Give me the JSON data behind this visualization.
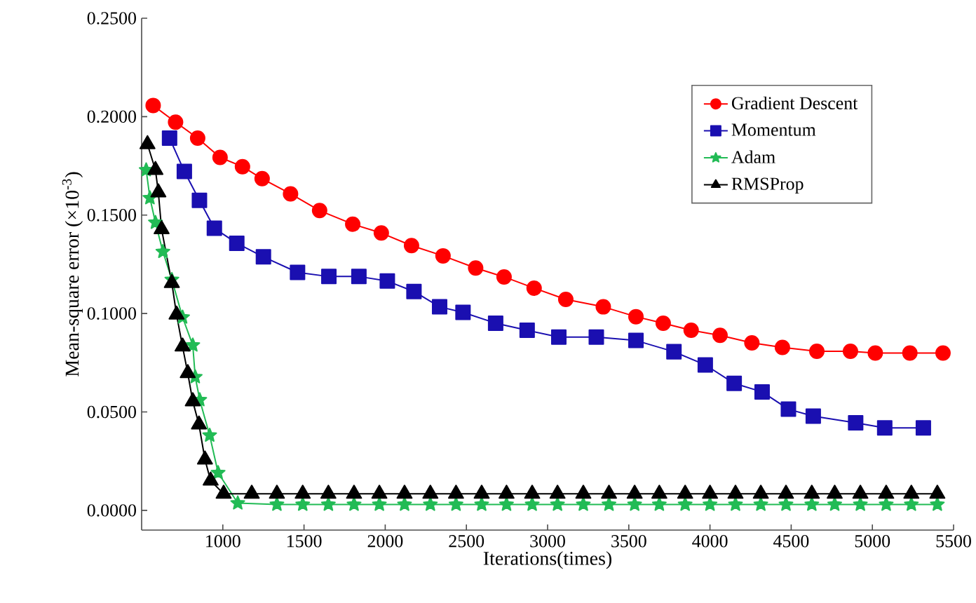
{
  "chart_data": {
    "type": "line",
    "xlabel": "Iterations(times)",
    "ylabel": "Mean-square error (×10$^{-3}$)",
    "xlim": [
      500,
      5500
    ],
    "ylim": [
      -0.01,
      0.25
    ],
    "xticks": [
      1000,
      1500,
      2000,
      2500,
      3000,
      3500,
      4000,
      4500,
      5000,
      5500
    ],
    "yticks": [
      {
        "value": 0,
        "label": "0.0000"
      },
      {
        "value": 0.05,
        "label": "0.0500"
      },
      {
        "value": 0.1,
        "label": "0.1000"
      },
      {
        "value": 0.15,
        "label": "0.1500"
      },
      {
        "value": 0.2,
        "label": "0.2000"
      },
      {
        "value": 0.25,
        "label": "0.2500"
      }
    ],
    "legend": "top right",
    "grid": false,
    "series": [
      {
        "name": "Gradient Descent",
        "color": "#ff0000",
        "marker": "circle",
        "x": [
          571,
          709,
          845,
          983,
          1121,
          1242,
          1417,
          1596,
          1800,
          1976,
          2162,
          2356,
          2557,
          2732,
          2917,
          3112,
          3343,
          3544,
          3712,
          3884,
          4062,
          4258,
          4446,
          4658,
          4865,
          5018,
          5231,
          5435
        ],
        "values": [
          0.2057,
          0.1972,
          0.1891,
          0.1793,
          0.1746,
          0.1685,
          0.1608,
          0.1523,
          0.1454,
          0.1409,
          0.1345,
          0.1293,
          0.1231,
          0.1186,
          0.1129,
          0.1072,
          0.1034,
          0.0984,
          0.0951,
          0.0915,
          0.0889,
          0.0851,
          0.0828,
          0.0808,
          0.0808,
          0.0799,
          0.0799,
          0.0799
        ]
      },
      {
        "name": "Momentum",
        "color": "#1a0fb0",
        "marker": "square",
        "x": [
          672,
          763,
          856,
          948,
          1086,
          1250,
          1460,
          1653,
          1838,
          2013,
          2177,
          2335,
          2479,
          2680,
          2874,
          3069,
          3300,
          3544,
          3778,
          3971,
          4149,
          4321,
          4483,
          4636,
          4897,
          5076,
          5314
        ],
        "values": [
          0.1891,
          0.1722,
          0.1575,
          0.1433,
          0.1357,
          0.1288,
          0.1209,
          0.1188,
          0.1188,
          0.1165,
          0.1112,
          0.1034,
          0.1006,
          0.0951,
          0.0915,
          0.088,
          0.088,
          0.0863,
          0.0806,
          0.0739,
          0.0645,
          0.0602,
          0.0514,
          0.0479,
          0.0445,
          0.0419,
          0.0419
        ]
      },
      {
        "name": "Adam",
        "color": "#22bb55",
        "marker": "star",
        "x": [
          528,
          551,
          585,
          631,
          686,
          752,
          815,
          830,
          858,
          919,
          971,
          1092,
          1333,
          1492,
          1650,
          1808,
          1964,
          2119,
          2278,
          2436,
          2594,
          2747,
          2905,
          3061,
          3220,
          3378,
          3536,
          3688,
          3847,
          4000,
          4157,
          4313,
          4468,
          4627,
          4768,
          4926,
          5085,
          5240,
          5400
        ],
        "values": [
          0.1729,
          0.1587,
          0.1462,
          0.1314,
          0.1172,
          0.0981,
          0.0839,
          0.0678,
          0.0561,
          0.0381,
          0.0191,
          0.0037,
          0.003,
          0.003,
          0.003,
          0.003,
          0.003,
          0.003,
          0.003,
          0.003,
          0.003,
          0.003,
          0.003,
          0.003,
          0.003,
          0.003,
          0.003,
          0.003,
          0.003,
          0.003,
          0.003,
          0.003,
          0.003,
          0.003,
          0.003,
          0.003,
          0.003,
          0.003,
          0.003
        ]
      },
      {
        "name": "RMSProp",
        "color": "#000000",
        "marker": "triangle",
        "x": [
          536,
          585,
          603,
          623,
          686,
          715,
          752,
          784,
          815,
          853,
          890,
          925,
          1005,
          1178,
          1333,
          1492,
          1650,
          1808,
          1964,
          2119,
          2278,
          2436,
          2594,
          2747,
          2905,
          3061,
          3220,
          3378,
          3536,
          3688,
          3847,
          4000,
          4157,
          4313,
          4468,
          4627,
          4768,
          4926,
          5085,
          5240,
          5400
        ],
        "values": [
          0.186,
          0.1729,
          0.1615,
          0.1428,
          0.1155,
          0.0994,
          0.0832,
          0.0697,
          0.0554,
          0.0436,
          0.0258,
          0.0151,
          0.0084,
          0.0084,
          0.0084,
          0.0084,
          0.0084,
          0.0084,
          0.0084,
          0.0084,
          0.0084,
          0.0084,
          0.0084,
          0.0084,
          0.0084,
          0.0084,
          0.0084,
          0.0084,
          0.0084,
          0.0084,
          0.0084,
          0.0084,
          0.0084,
          0.0084,
          0.0084,
          0.0084,
          0.0084,
          0.0084,
          0.0084,
          0.0084,
          0.0084
        ]
      }
    ]
  }
}
